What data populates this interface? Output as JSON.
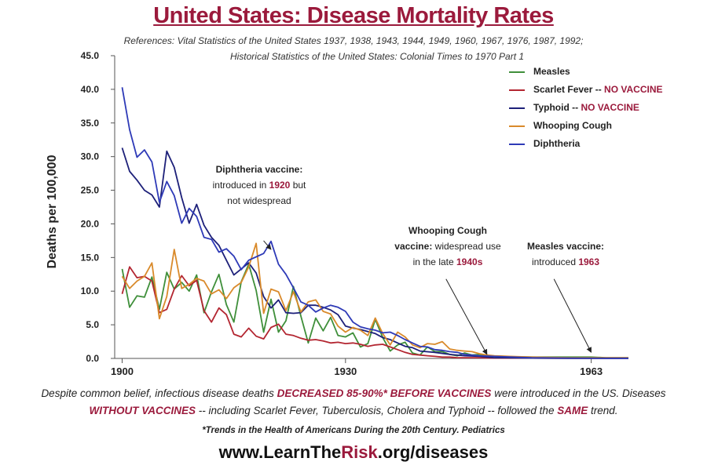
{
  "title": "United States: Disease Mortality Rates",
  "references": {
    "line1": "References: Vital Statistics of the United States 1937, 1938, 1943, 1944, 1949, 1960, 1967, 1976, 1987, 1992;",
    "line2": "Historical Statistics of the United States: Colonial Times to 1970 Part 1"
  },
  "legend": [
    {
      "name": "Measles",
      "note": "",
      "color": "#3f8f3a"
    },
    {
      "name": "Scarlet Fever -- ",
      "note": "NO VACCINE",
      "color": "#b32631"
    },
    {
      "name": "Typhoid -- ",
      "note": "NO VACCINE",
      "color": "#1d2079"
    },
    {
      "name": "Whooping Cough",
      "note": "",
      "color": "#d98a2b"
    },
    {
      "name": "Diphtheria",
      "note": "",
      "color": "#2e3ab7"
    }
  ],
  "annotations": {
    "diphtheria": {
      "l1": "Diphtheria vaccine:",
      "l2a": "introduced in ",
      "l2b": "1920",
      "l2c": " but",
      "l3": "not widespread"
    },
    "whooping": {
      "l1": "Whooping Cough",
      "l2a": "vaccine:",
      "l2b": " widespread use",
      "l3a": "in the late ",
      "l3b": "1940s"
    },
    "measles": {
      "l1": "Measles vaccine:",
      "l2a": "introduced ",
      "l2b": "1963"
    }
  },
  "footer": {
    "p1": "Despite common belief, infectious disease deaths ",
    "h1": "DECREASED 85-90%* BEFORE VACCINES",
    "p2": " were introduced in the US. Diseases",
    "h2": "WITHOUT VACCINES",
    "p3": " -- including Scarlet Fever, Tuberculosis, Cholera and Typhoid -- followed the ",
    "h3": "SAME",
    "p4": " trend."
  },
  "citation": "*Trends in the Health of Americans During the 20th Century. Pediatrics",
  "url": {
    "a": "www.LearnThe",
    "b": "Risk",
    "c": ".org/diseases"
  },
  "chart_data": {
    "type": "line",
    "title": "United States: Disease Mortality Rates",
    "xlabel": "",
    "ylabel": "Deaths per 100,000",
    "xlim": [
      1899,
      1968
    ],
    "ylim": [
      0,
      45
    ],
    "grid": false,
    "legend_position": "top-right",
    "y_ticks": [
      "0.0",
      "5.0",
      "10.0",
      "15.0",
      "20.0",
      "25.0",
      "30.0",
      "35.0",
      "40.0",
      "45.0"
    ],
    "y_tick_values": [
      0,
      5,
      10,
      15,
      20,
      25,
      30,
      35,
      40,
      45
    ],
    "x_ticks": [
      "1900",
      "1930",
      "1963"
    ],
    "x_tick_values": [
      1900,
      1930,
      1963
    ],
    "arrows": [
      {
        "from": [
          1919,
          17.5
        ],
        "to": [
          1920,
          16.2
        ]
      },
      {
        "from": [
          1943.5,
          11.8
        ],
        "to": [
          1949,
          0.6
        ]
      },
      {
        "from": [
          1958,
          11.8
        ],
        "to": [
          1963,
          0.9
        ]
      }
    ],
    "series": [
      {
        "name": "Measles",
        "color": "#3f8f3a",
        "x": [
          1900,
          1901,
          1902,
          1903,
          1904,
          1905,
          1906,
          1907,
          1908,
          1909,
          1910,
          1911,
          1912,
          1913,
          1914,
          1915,
          1916,
          1917,
          1918,
          1919,
          1920,
          1921,
          1922,
          1923,
          1924,
          1925,
          1926,
          1927,
          1928,
          1929,
          1930,
          1931,
          1932,
          1933,
          1934,
          1935,
          1936,
          1937,
          1938,
          1939,
          1940,
          1941,
          1942,
          1943,
          1944,
          1945,
          1946,
          1947,
          1948,
          1949,
          1950,
          1955,
          1960,
          1963,
          1965,
          1968
        ],
        "y": [
          13.3,
          7.6,
          9.3,
          9.1,
          12.1,
          7.3,
          12.8,
          10.3,
          11.3,
          10.0,
          12.4,
          6.8,
          9.9,
          12.5,
          8.0,
          5.4,
          11.4,
          14.0,
          10.1,
          3.9,
          8.8,
          3.9,
          5.6,
          10.7,
          6.3,
          2.3,
          6.0,
          4.1,
          6.1,
          3.4,
          3.2,
          3.8,
          1.7,
          2.2,
          5.8,
          3.1,
          1.1,
          2.0,
          2.4,
          0.8,
          0.5,
          1.7,
          1.0,
          1.0,
          0.6,
          0.4,
          0.8,
          0.5,
          0.6,
          0.4,
          0.3,
          0.2,
          0.2,
          0.2,
          0.1,
          0.1
        ]
      },
      {
        "name": "Scarlet Fever",
        "color": "#b32631",
        "x": [
          1900,
          1901,
          1902,
          1903,
          1904,
          1905,
          1906,
          1907,
          1908,
          1909,
          1910,
          1911,
          1912,
          1913,
          1914,
          1915,
          1916,
          1917,
          1918,
          1919,
          1920,
          1921,
          1922,
          1923,
          1924,
          1925,
          1926,
          1927,
          1928,
          1929,
          1930,
          1931,
          1932,
          1933,
          1934,
          1935,
          1936,
          1937,
          1938,
          1939,
          1940,
          1941,
          1942,
          1943,
          1944,
          1945,
          1946,
          1948,
          1950,
          1955,
          1960,
          1965,
          1968
        ],
        "y": [
          9.6,
          13.6,
          12.0,
          12.2,
          11.5,
          6.8,
          7.3,
          10.3,
          12.3,
          10.8,
          11.6,
          7.1,
          5.4,
          7.5,
          6.5,
          3.6,
          3.2,
          4.5,
          3.3,
          2.9,
          4.6,
          5.1,
          3.6,
          3.4,
          3.0,
          2.7,
          2.8,
          2.6,
          2.3,
          2.4,
          2.2,
          2.3,
          2.1,
          1.8,
          2.0,
          2.1,
          1.7,
          1.3,
          0.9,
          0.6,
          0.5,
          0.4,
          0.3,
          0.2,
          0.2,
          0.1,
          0.1,
          0.1,
          0.05,
          0.05,
          0.02,
          0.02,
          0.02
        ]
      },
      {
        "name": "Typhoid",
        "color": "#1d2079",
        "x": [
          1900,
          1901,
          1902,
          1903,
          1904,
          1905,
          1906,
          1907,
          1908,
          1909,
          1910,
          1911,
          1912,
          1913,
          1914,
          1915,
          1916,
          1917,
          1918,
          1919,
          1920,
          1921,
          1922,
          1923,
          1924,
          1925,
          1926,
          1927,
          1928,
          1929,
          1930,
          1931,
          1932,
          1933,
          1934,
          1935,
          1936,
          1937,
          1938,
          1939,
          1940,
          1942,
          1944,
          1946,
          1948,
          1950,
          1955,
          1960,
          1965,
          1968
        ],
        "y": [
          31.3,
          27.8,
          26.5,
          25.0,
          24.3,
          22.5,
          30.8,
          28.4,
          23.9,
          20.1,
          22.9,
          19.8,
          18.0,
          16.8,
          14.6,
          12.4,
          13.3,
          14.2,
          12.7,
          9.2,
          7.5,
          8.7,
          6.8,
          6.7,
          6.8,
          7.9,
          7.9,
          7.6,
          7.2,
          6.5,
          4.8,
          4.5,
          4.3,
          4.0,
          3.7,
          3.1,
          2.8,
          2.3,
          1.8,
          1.6,
          1.1,
          0.9,
          0.6,
          0.4,
          0.3,
          0.1,
          0.05,
          0.02,
          0.02,
          0.02
        ]
      },
      {
        "name": "Whooping Cough",
        "color": "#d98a2b",
        "x": [
          1900,
          1901,
          1902,
          1903,
          1904,
          1905,
          1906,
          1907,
          1908,
          1909,
          1910,
          1911,
          1912,
          1913,
          1914,
          1915,
          1916,
          1917,
          1918,
          1919,
          1920,
          1921,
          1922,
          1923,
          1924,
          1925,
          1926,
          1927,
          1928,
          1929,
          1930,
          1931,
          1932,
          1933,
          1934,
          1935,
          1936,
          1937,
          1938,
          1939,
          1940,
          1941,
          1942,
          1943,
          1944,
          1945,
          1946,
          1947,
          1948,
          1949,
          1950,
          1952,
          1955,
          1960,
          1963,
          1965,
          1968
        ],
        "y": [
          12.2,
          10.4,
          11.5,
          12.2,
          14.2,
          5.9,
          9.2,
          16.2,
          10.4,
          11.0,
          11.9,
          11.5,
          9.6,
          10.2,
          8.9,
          10.5,
          11.3,
          13.6,
          17.1,
          6.7,
          10.3,
          9.9,
          7.1,
          9.9,
          6.9,
          8.4,
          8.7,
          7.0,
          6.6,
          4.8,
          3.9,
          4.6,
          4.2,
          3.4,
          6.0,
          3.7,
          2.0,
          3.9,
          3.2,
          2.0,
          1.6,
          2.2,
          2.1,
          2.5,
          1.4,
          1.2,
          1.1,
          1.0,
          0.7,
          0.5,
          0.4,
          0.3,
          0.2,
          0.1,
          0.1,
          0.1,
          0.1
        ]
      },
      {
        "name": "Diphtheria",
        "color": "#2e3ab7",
        "x": [
          1900,
          1901,
          1902,
          1903,
          1904,
          1905,
          1906,
          1907,
          1908,
          1909,
          1910,
          1911,
          1912,
          1913,
          1914,
          1915,
          1916,
          1917,
          1918,
          1919,
          1920,
          1921,
          1922,
          1923,
          1924,
          1925,
          1926,
          1927,
          1928,
          1929,
          1930,
          1931,
          1932,
          1933,
          1934,
          1935,
          1936,
          1937,
          1938,
          1939,
          1940,
          1941,
          1942,
          1943,
          1944,
          1945,
          1946,
          1948,
          1950,
          1955,
          1960,
          1965,
          1968
        ],
        "y": [
          40.3,
          34.0,
          29.9,
          31.0,
          29.2,
          23.2,
          26.3,
          24.2,
          20.1,
          22.3,
          21.1,
          18.0,
          17.7,
          15.8,
          16.3,
          15.2,
          13.2,
          14.6,
          15.1,
          15.6,
          17.4,
          14.0,
          12.5,
          10.5,
          8.4,
          7.9,
          6.9,
          7.5,
          7.9,
          7.6,
          7.0,
          5.4,
          4.7,
          4.4,
          4.2,
          3.8,
          3.9,
          3.4,
          2.8,
          2.3,
          1.8,
          1.7,
          1.3,
          1.2,
          1.0,
          0.9,
          0.6,
          0.4,
          0.3,
          0.1,
          0.05,
          0.02,
          0.02
        ]
      }
    ]
  }
}
